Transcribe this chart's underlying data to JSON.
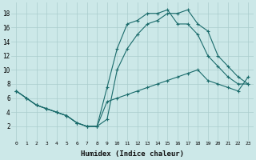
{
  "xlabel": "Humidex (Indice chaleur)",
  "bg_color": "#cce8e8",
  "grid_color": "#aacccc",
  "line_color": "#1a6b6b",
  "xlim": [
    -0.5,
    23.5
  ],
  "ylim": [
    0,
    19.5
  ],
  "xticks": [
    0,
    1,
    2,
    3,
    4,
    5,
    6,
    7,
    8,
    9,
    10,
    11,
    12,
    13,
    14,
    15,
    16,
    17,
    18,
    19,
    20,
    21,
    22,
    23
  ],
  "yticks": [
    2,
    4,
    6,
    8,
    10,
    12,
    14,
    16,
    18
  ],
  "curve1_x": [
    0,
    1,
    2,
    3,
    4,
    5,
    6,
    7,
    8,
    9,
    10,
    11,
    12,
    13,
    14,
    15,
    16,
    17,
    18,
    19,
    20,
    21,
    22,
    23
  ],
  "curve1_y": [
    7,
    6,
    5,
    4.5,
    4,
    3.5,
    2.5,
    2,
    2,
    7.5,
    13,
    16.5,
    17,
    18,
    18,
    18.5,
    16.5,
    16.5,
    15,
    12,
    10.5,
    9,
    8,
    8
  ],
  "curve2_x": [
    0,
    1,
    2,
    3,
    4,
    5,
    6,
    7,
    8,
    9,
    10,
    11,
    12,
    13,
    14,
    15,
    16,
    17,
    18,
    19,
    20,
    21,
    22,
    23
  ],
  "curve2_y": [
    7,
    6,
    5,
    4.5,
    4,
    3.5,
    2.5,
    2,
    2,
    3,
    10,
    13,
    15,
    16.5,
    17,
    18,
    18,
    18.5,
    16.5,
    15.5,
    12,
    10.5,
    9,
    8
  ],
  "curve3_x": [
    0,
    1,
    2,
    3,
    4,
    5,
    6,
    7,
    8,
    9,
    10,
    11,
    12,
    13,
    14,
    15,
    16,
    17,
    18,
    19,
    20,
    21,
    22,
    23
  ],
  "curve3_y": [
    7,
    6,
    5,
    4.5,
    4,
    3.5,
    2.5,
    2,
    2,
    5.5,
    6,
    6.5,
    7,
    7.5,
    8,
    8.5,
    9,
    9.5,
    10,
    8.5,
    8,
    7.5,
    7,
    9
  ]
}
